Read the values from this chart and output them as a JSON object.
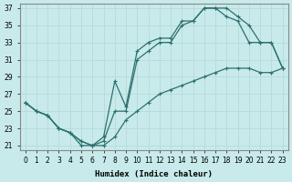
{
  "xlabel": "Humidex (Indice chaleur)",
  "ylabel": "",
  "bg_color": "#c8eaea",
  "grid_color": "#b8dcdc",
  "line_color": "#2d7070",
  "xlim": [
    -0.5,
    23.5
  ],
  "ylim": [
    20.5,
    37.5
  ],
  "xticks": [
    0,
    1,
    2,
    3,
    4,
    5,
    6,
    7,
    8,
    9,
    10,
    11,
    12,
    13,
    14,
    15,
    16,
    17,
    18,
    19,
    20,
    21,
    22,
    23
  ],
  "yticks": [
    21,
    23,
    25,
    27,
    29,
    31,
    33,
    35,
    37
  ],
  "line1_x": [
    0,
    1,
    2,
    3,
    4,
    5,
    6,
    7,
    8,
    9,
    10,
    11,
    12,
    13,
    14,
    15,
    16,
    17,
    18,
    19,
    20,
    21,
    22,
    23
  ],
  "line1_y": [
    26,
    25,
    24.5,
    23,
    22.5,
    21.5,
    21,
    22,
    28.5,
    25.5,
    32,
    33,
    33.5,
    33.5,
    35.5,
    35.5,
    37,
    37,
    36,
    35.5,
    33,
    33,
    33,
    30
  ],
  "line2_x": [
    0,
    1,
    2,
    3,
    4,
    5,
    6,
    7,
    8,
    9,
    10,
    11,
    12,
    13,
    14,
    15,
    16,
    17,
    18,
    19,
    20,
    21,
    22,
    23
  ],
  "line2_y": [
    26,
    25,
    24.5,
    23,
    22.5,
    21,
    21,
    21.5,
    25,
    25,
    31,
    32,
    33,
    33,
    35,
    35.5,
    37,
    37,
    37,
    36,
    35,
    33,
    33,
    30
  ],
  "line3_x": [
    0,
    1,
    2,
    3,
    4,
    5,
    6,
    7,
    8,
    9,
    10,
    11,
    12,
    13,
    14,
    15,
    16,
    17,
    18,
    19,
    20,
    21,
    22,
    23
  ],
  "line3_y": [
    26,
    25,
    24.5,
    23,
    22.5,
    21.5,
    21,
    21,
    22,
    24,
    25,
    26,
    27,
    27.5,
    28,
    28.5,
    29,
    29.5,
    30,
    30,
    30,
    29.5,
    29.5,
    30
  ]
}
